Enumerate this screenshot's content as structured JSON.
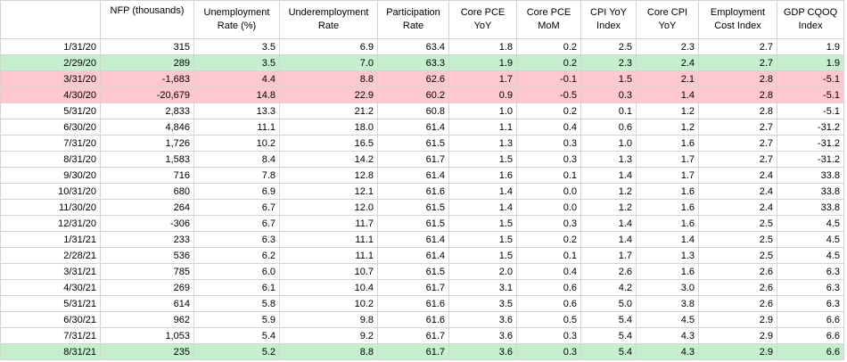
{
  "columns": [
    {
      "label": "",
      "lines": [
        "",
        ""
      ]
    },
    {
      "label": "NFP (thousands)",
      "lines": [
        "NFP (thousands)",
        ""
      ]
    },
    {
      "label": "Unemployment Rate (%)",
      "lines": [
        "Unemployment",
        "Rate (%)"
      ]
    },
    {
      "label": "Underemployment Rate",
      "lines": [
        "Underemployment",
        "Rate"
      ]
    },
    {
      "label": "Participation Rate",
      "lines": [
        "Participation",
        "Rate"
      ]
    },
    {
      "label": "Core PCE YoY",
      "lines": [
        "Core PCE",
        "YoY"
      ]
    },
    {
      "label": "Core PCE MoM",
      "lines": [
        "Core PCE",
        "MoM"
      ]
    },
    {
      "label": "CPI YoY Index",
      "lines": [
        "CPI YoY",
        "Index"
      ]
    },
    {
      "label": "Core CPI YoY",
      "lines": [
        "Core CPI",
        "YoY"
      ]
    },
    {
      "label": "Employment Cost Index",
      "lines": [
        "Employment",
        "Cost Index"
      ]
    },
    {
      "label": "GDP CQOQ Index",
      "lines": [
        "GDP CQOQ",
        "Index"
      ]
    }
  ],
  "rows": [
    {
      "highlight": "none",
      "cells": [
        "1/31/20",
        "315",
        "3.5",
        "6.9",
        "63.4",
        "1.8",
        "0.2",
        "2.5",
        "2.3",
        "2.7",
        "1.9"
      ]
    },
    {
      "highlight": "green",
      "cells": [
        "2/29/20",
        "289",
        "3.5",
        "7.0",
        "63.3",
        "1.9",
        "0.2",
        "2.3",
        "2.4",
        "2.7",
        "1.9"
      ]
    },
    {
      "highlight": "red",
      "cells": [
        "3/31/20",
        "-1,683",
        "4.4",
        "8.8",
        "62.6",
        "1.7",
        "-0.1",
        "1.5",
        "2.1",
        "2.8",
        "-5.1"
      ]
    },
    {
      "highlight": "red",
      "cells": [
        "4/30/20",
        "-20,679",
        "14.8",
        "22.9",
        "60.2",
        "0.9",
        "-0.5",
        "0.3",
        "1.4",
        "2.8",
        "-5.1"
      ]
    },
    {
      "highlight": "none",
      "cells": [
        "5/31/20",
        "2,833",
        "13.3",
        "21.2",
        "60.8",
        "1.0",
        "0.2",
        "0.1",
        "1.2",
        "2.8",
        "-5.1"
      ]
    },
    {
      "highlight": "none",
      "cells": [
        "6/30/20",
        "4,846",
        "11.1",
        "18.0",
        "61.4",
        "1.1",
        "0.4",
        "0.6",
        "1.2",
        "2.7",
        "-31.2"
      ]
    },
    {
      "highlight": "none",
      "cells": [
        "7/31/20",
        "1,726",
        "10.2",
        "16.5",
        "61.5",
        "1.3",
        "0.3",
        "1.0",
        "1.6",
        "2.7",
        "-31.2"
      ]
    },
    {
      "highlight": "none",
      "cells": [
        "8/31/20",
        "1,583",
        "8.4",
        "14.2",
        "61.7",
        "1.5",
        "0.3",
        "1.3",
        "1.7",
        "2.7",
        "-31.2"
      ]
    },
    {
      "highlight": "none",
      "cells": [
        "9/30/20",
        "716",
        "7.8",
        "12.8",
        "61.4",
        "1.6",
        "0.1",
        "1.4",
        "1.7",
        "2.4",
        "33.8"
      ]
    },
    {
      "highlight": "none",
      "cells": [
        "10/31/20",
        "680",
        "6.9",
        "12.1",
        "61.6",
        "1.4",
        "0.0",
        "1.2",
        "1.6",
        "2.4",
        "33.8"
      ]
    },
    {
      "highlight": "none",
      "cells": [
        "11/30/20",
        "264",
        "6.7",
        "12.0",
        "61.5",
        "1.4",
        "0.0",
        "1.2",
        "1.6",
        "2.4",
        "33.8"
      ]
    },
    {
      "highlight": "none",
      "cells": [
        "12/31/20",
        "-306",
        "6.7",
        "11.7",
        "61.5",
        "1.5",
        "0.3",
        "1.4",
        "1.6",
        "2.5",
        "4.5"
      ]
    },
    {
      "highlight": "none",
      "cells": [
        "1/31/21",
        "233",
        "6.3",
        "11.1",
        "61.4",
        "1.5",
        "0.2",
        "1.4",
        "1.4",
        "2.5",
        "4.5"
      ]
    },
    {
      "highlight": "none",
      "cells": [
        "2/28/21",
        "536",
        "6.2",
        "11.1",
        "61.4",
        "1.5",
        "0.1",
        "1.7",
        "1.3",
        "2.5",
        "4.5"
      ]
    },
    {
      "highlight": "none",
      "cells": [
        "3/31/21",
        "785",
        "6.0",
        "10.7",
        "61.5",
        "2.0",
        "0.4",
        "2.6",
        "1.6",
        "2.6",
        "6.3"
      ]
    },
    {
      "highlight": "none",
      "cells": [
        "4/30/21",
        "269",
        "6.1",
        "10.4",
        "61.7",
        "3.1",
        "0.6",
        "4.2",
        "3.0",
        "2.6",
        "6.3"
      ]
    },
    {
      "highlight": "none",
      "cells": [
        "5/31/21",
        "614",
        "5.8",
        "10.2",
        "61.6",
        "3.5",
        "0.6",
        "5.0",
        "3.8",
        "2.6",
        "6.3"
      ]
    },
    {
      "highlight": "none",
      "cells": [
        "6/30/21",
        "962",
        "5.9",
        "9.8",
        "61.6",
        "3.6",
        "0.5",
        "5.4",
        "4.5",
        "2.9",
        "6.6"
      ]
    },
    {
      "highlight": "none",
      "cells": [
        "7/31/21",
        "1,053",
        "5.4",
        "9.2",
        "61.7",
        "3.6",
        "0.3",
        "5.4",
        "4.3",
        "2.9",
        "6.6"
      ]
    },
    {
      "highlight": "green",
      "cells": [
        "8/31/21",
        "235",
        "5.2",
        "8.8",
        "61.7",
        "3.6",
        "0.3",
        "5.4",
        "4.3",
        "2.9",
        "6.6"
      ]
    }
  ],
  "colors": {
    "highlight_green": "#c6efce",
    "highlight_red": "#ffc7ce",
    "gridline": "#d4d4d4"
  }
}
